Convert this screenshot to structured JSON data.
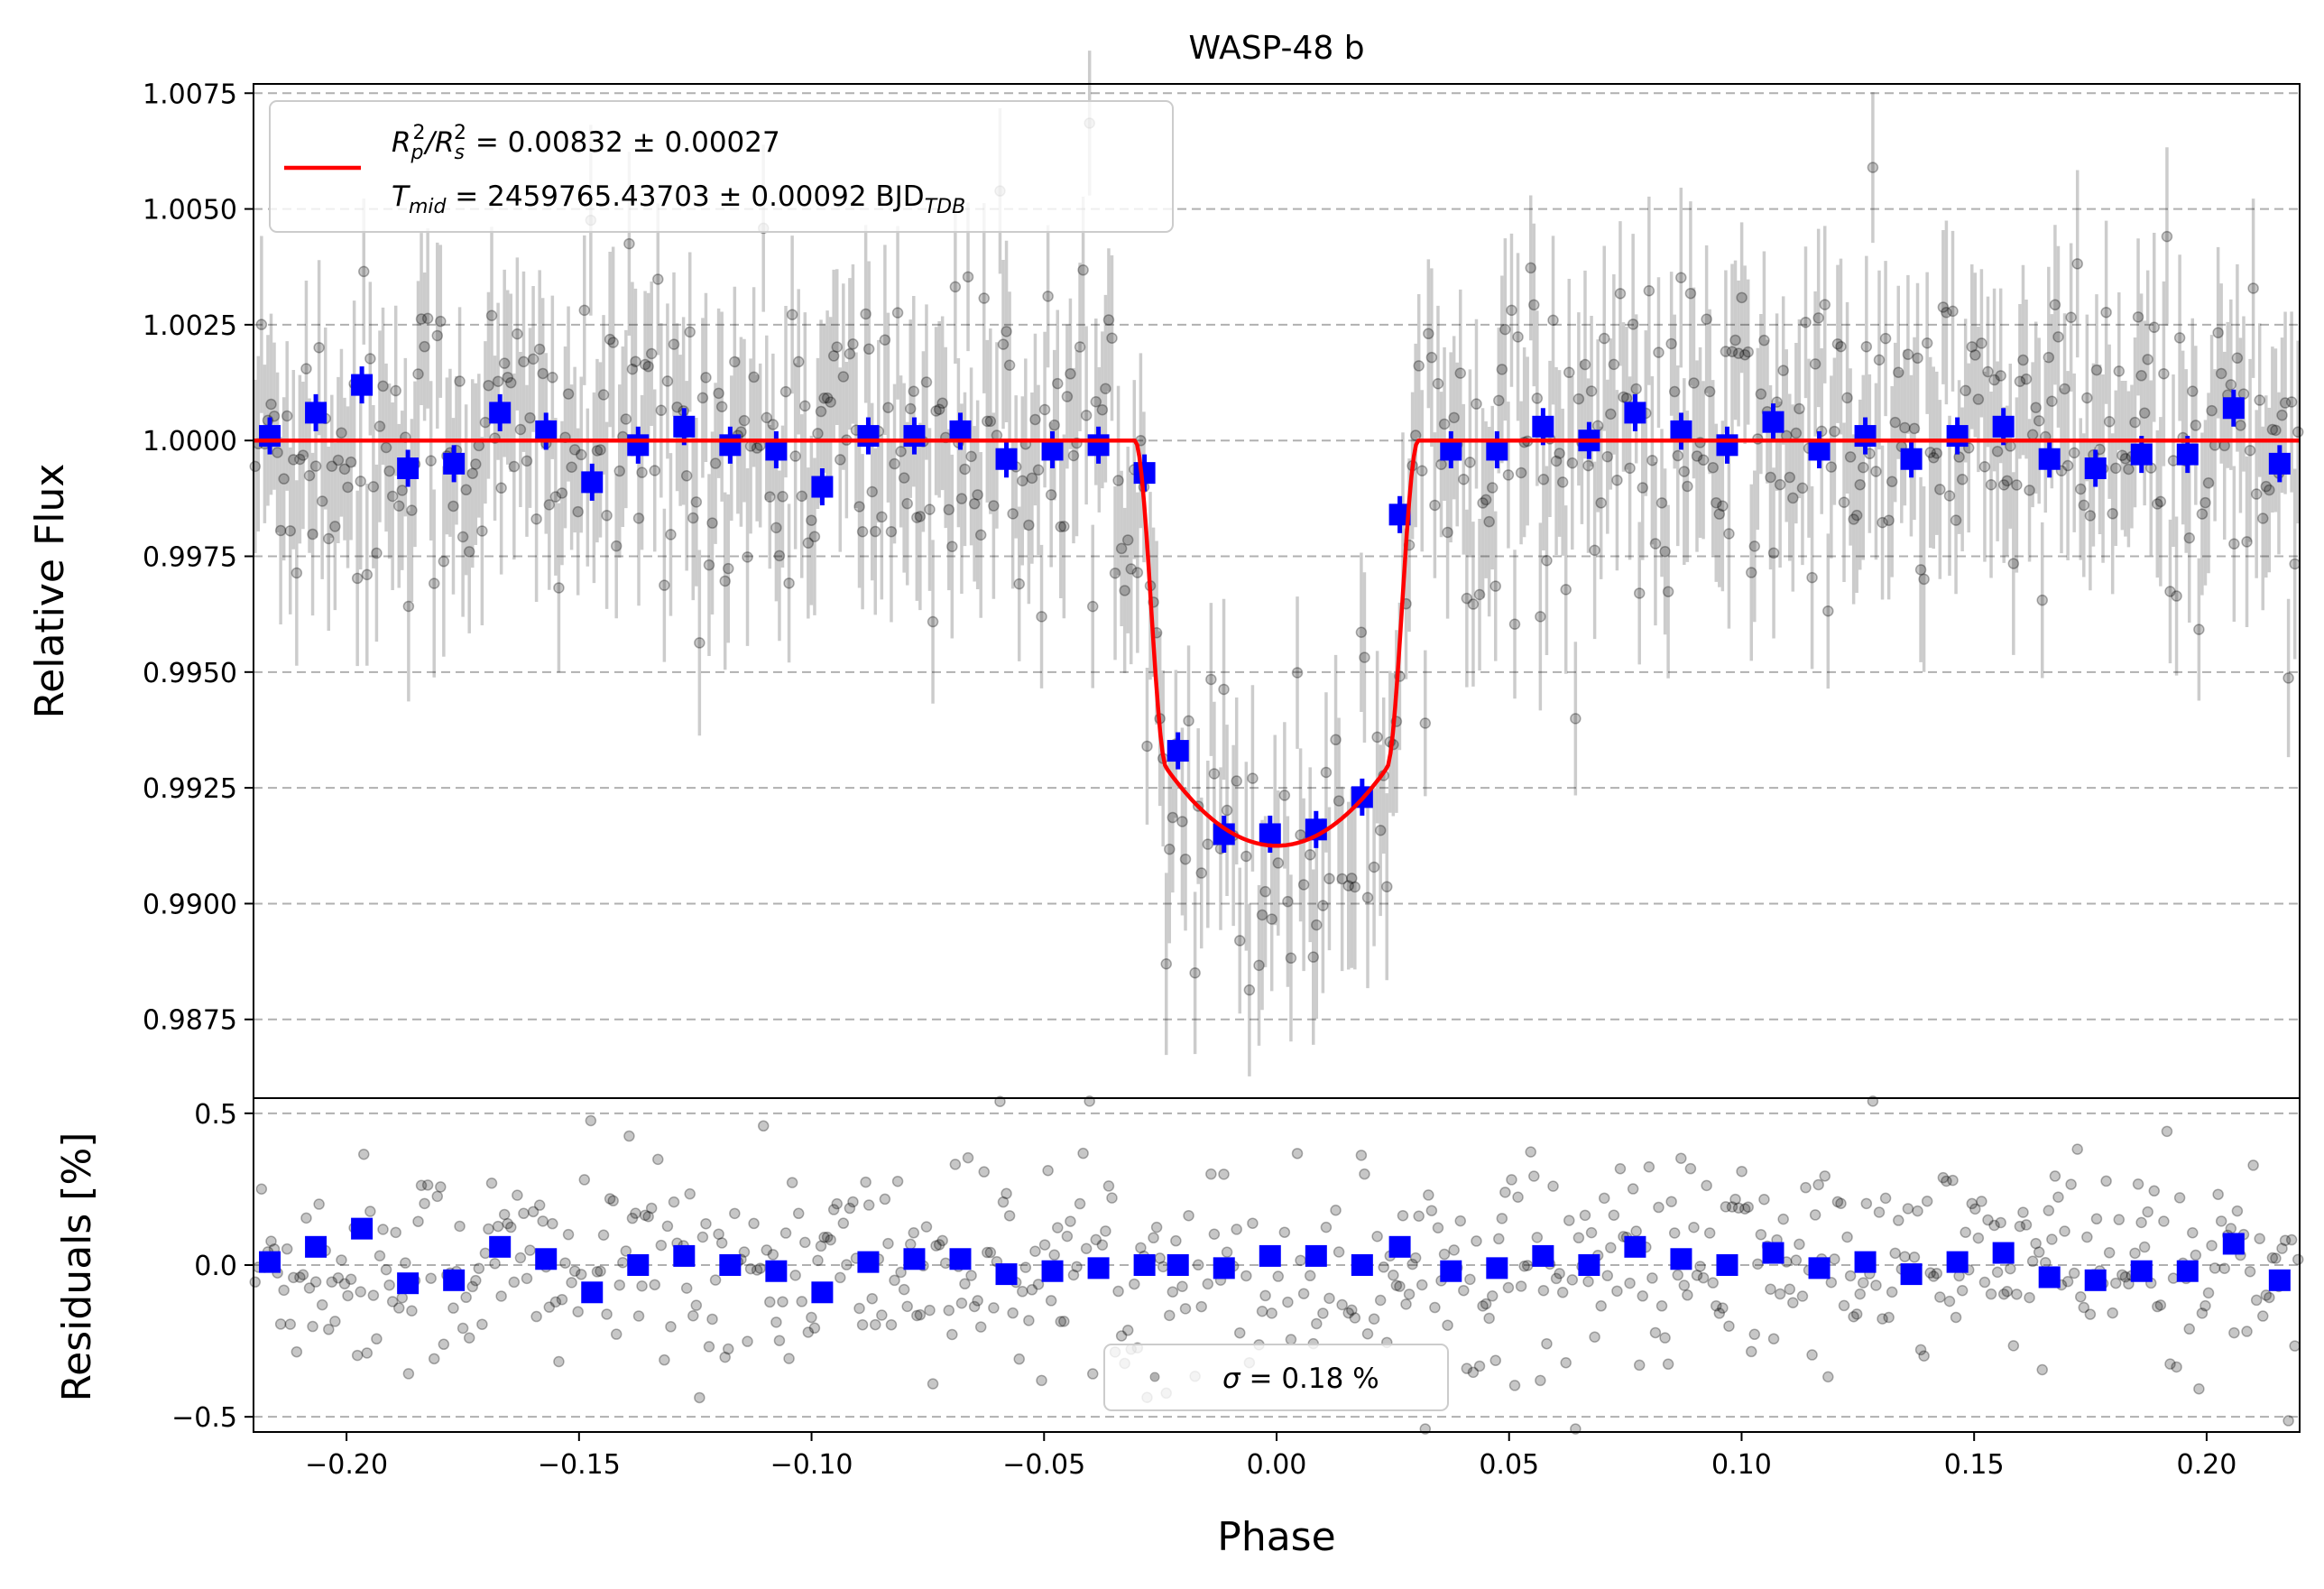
{
  "chart_data": [
    {
      "type": "scatter",
      "panel": "top",
      "title": "WASP-48 b",
      "xlabel": "",
      "ylabel": "Relative Flux",
      "xlim": [
        -0.22,
        0.22
      ],
      "ylim": [
        0.9858,
        1.0077
      ],
      "yticks": [
        0.9875,
        0.99,
        0.9925,
        0.995,
        0.9975,
        1.0,
        1.0025,
        1.005,
        1.0075
      ],
      "ytick_labels": [
        "0.9875",
        "0.9900",
        "0.9925",
        "0.9950",
        "0.9975",
        "1.0000",
        "1.0025",
        "1.0050",
        "1.0075"
      ],
      "grid": true,
      "legend": {
        "placement": "top-left",
        "line1": {
          "prefix": "R",
          "sub1": "p",
          "sup1": "2",
          "mid": "/R",
          "sub2": "s",
          "sup2": "2",
          "suffix": " = 0.00832 ± 0.00027"
        },
        "line2": {
          "prefix": "T",
          "sub1": "mid",
          "suffix": " = 2459765.43703 ± 0.00092 BJD",
          "sub2": "TDB"
        }
      },
      "model": {
        "name": "transit model",
        "color": "#ff0000",
        "baseline": 1.0,
        "t1": -0.0305,
        "t2": -0.0235,
        "t3": 0.0235,
        "t4": 0.0305,
        "depth_min": 0.99125,
        "depth_edge": 0.9929
      },
      "binned": {
        "name": "binned data",
        "color": "#0000ff",
        "x": [
          -0.2165,
          -0.2066,
          -0.1967,
          -0.1868,
          -0.1769,
          -0.167,
          -0.1571,
          -0.1472,
          -0.1373,
          -0.1274,
          -0.1175,
          -0.1076,
          -0.0977,
          -0.0878,
          -0.0779,
          -0.068,
          -0.0581,
          -0.0482,
          -0.0383,
          -0.0284,
          -0.0212,
          -0.0113,
          -0.0014,
          0.0085,
          0.0184,
          0.0265,
          0.0375,
          0.0474,
          0.0573,
          0.0672,
          0.0771,
          0.087,
          0.0969,
          0.1068,
          0.1167,
          0.1266,
          0.1365,
          0.1464,
          0.1563,
          0.1662,
          0.1761,
          0.186,
          0.1959,
          0.2058,
          0.2157
        ],
        "y": [
          1.0001,
          1.0006,
          1.0012,
          0.9994,
          0.9995,
          1.0006,
          1.0002,
          0.9991,
          0.9999,
          1.0003,
          0.9999,
          0.9998,
          0.999,
          1.0001,
          1.0001,
          1.0002,
          0.9996,
          0.9998,
          0.9999,
          0.9993,
          0.9933,
          0.9915,
          0.9915,
          0.9916,
          0.9923,
          0.9984,
          0.9998,
          0.9998,
          1.0003,
          1.0,
          1.0006,
          1.0002,
          0.9999,
          1.0004,
          0.9998,
          1.0001,
          0.9996,
          1.0001,
          1.0003,
          0.9996,
          0.9994,
          0.9997,
          0.9997,
          1.0007,
          0.9995
        ],
        "err": [
          0.0004,
          0.0004,
          0.0004,
          0.0004,
          0.0004,
          0.0004,
          0.0004,
          0.0004,
          0.0004,
          0.0004,
          0.0004,
          0.0004,
          0.0004,
          0.0004,
          0.0004,
          0.0004,
          0.0004,
          0.0004,
          0.0004,
          0.0004,
          0.0004,
          0.0004,
          0.0004,
          0.0004,
          0.0004,
          0.0004,
          0.0004,
          0.0004,
          0.0004,
          0.0004,
          0.0004,
          0.0004,
          0.0004,
          0.0004,
          0.0004,
          0.0004,
          0.0004,
          0.0004,
          0.0004,
          0.0004,
          0.0004,
          0.0004,
          0.0004,
          0.0004,
          0.0004
        ]
      },
      "raw": {
        "name": "unbinned data",
        "color": "#000000",
        "alpha": 0.3,
        "n_points": 640,
        "scatter": 0.0018,
        "errorbar": 0.0018
      }
    },
    {
      "type": "scatter",
      "panel": "bottom",
      "title": "",
      "xlabel": "Phase",
      "ylabel": "Residuals [%]",
      "xlim": [
        -0.22,
        0.22
      ],
      "ylim": [
        -0.55,
        0.55
      ],
      "xticks": [
        -0.2,
        -0.15,
        -0.1,
        -0.05,
        0.0,
        0.05,
        0.1,
        0.15,
        0.2
      ],
      "xtick_labels": [
        "−0.20",
        "−0.15",
        "−0.10",
        "−0.05",
        "0.00",
        "0.05",
        "0.10",
        "0.15",
        "0.20"
      ],
      "yticks": [
        -0.5,
        0.0,
        0.5
      ],
      "ytick_labels": [
        "−0.5",
        "0.0",
        "0.5"
      ],
      "grid": true,
      "legend": {
        "placement": "bottom-center",
        "sigma_label": "σ",
        "text": " = 0.18 %"
      },
      "binned": {
        "color": "#0000ff",
        "x": [
          -0.2165,
          -0.2066,
          -0.1967,
          -0.1868,
          -0.1769,
          -0.167,
          -0.1571,
          -0.1472,
          -0.1373,
          -0.1274,
          -0.1175,
          -0.1076,
          -0.0977,
          -0.0878,
          -0.0779,
          -0.068,
          -0.0581,
          -0.0482,
          -0.0383,
          -0.0284,
          -0.0212,
          -0.0113,
          -0.0014,
          0.0085,
          0.0184,
          0.0265,
          0.0375,
          0.0474,
          0.0573,
          0.0672,
          0.0771,
          0.087,
          0.0969,
          0.1068,
          0.1167,
          0.1266,
          0.1365,
          0.1464,
          0.1563,
          0.1662,
          0.1761,
          0.186,
          0.1959,
          0.2058,
          0.2157
        ],
        "y": [
          0.01,
          0.06,
          0.12,
          -0.06,
          -0.05,
          0.06,
          0.02,
          -0.09,
          0.0,
          0.03,
          0.0,
          -0.02,
          -0.09,
          0.01,
          0.02,
          0.02,
          -0.03,
          -0.02,
          -0.01,
          0.0,
          0.0,
          -0.01,
          0.03,
          0.03,
          0.0,
          0.06,
          -0.02,
          -0.01,
          0.03,
          0.0,
          0.06,
          0.02,
          0.0,
          0.04,
          -0.01,
          0.01,
          -0.03,
          0.01,
          0.04,
          -0.04,
          -0.05,
          -0.02,
          -0.02,
          0.07,
          -0.05
        ]
      },
      "raw": {
        "color": "#000000",
        "alpha": 0.3,
        "n_points": 640,
        "sigma_percent": 0.18
      }
    }
  ]
}
